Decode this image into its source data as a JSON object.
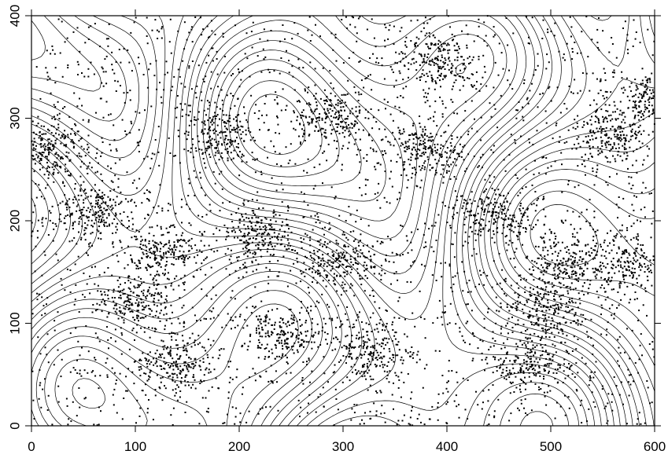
{
  "chart_data": {
    "type": "scatter",
    "title": "",
    "xlabel": "",
    "ylabel": "",
    "xlim": [
      0,
      600
    ],
    "ylim": [
      0,
      400
    ],
    "x_ticks": [
      0,
      100,
      200,
      300,
      400,
      500,
      600
    ],
    "x_tick_labels": [
      "0",
      "100",
      "200",
      "300",
      "400",
      "500",
      "600"
    ],
    "y_ticks": [
      0,
      100,
      200,
      300,
      400
    ],
    "y_tick_labels": [
      "0",
      "100",
      "200",
      "300",
      "400"
    ],
    "grid": false,
    "legend": "none",
    "background_layer": "topographic contour lines",
    "colors": {
      "points": "#000000",
      "contours": "#000000",
      "background": "#ffffff"
    },
    "series": [
      {
        "marker": "dot",
        "cluster_centers": [
          {
            "x": 125,
            "y": 170
          },
          {
            "x": 215,
            "y": 185
          },
          {
            "x": 300,
            "y": 160
          },
          {
            "x": 375,
            "y": 270
          },
          {
            "x": 495,
            "y": 110
          },
          {
            "x": 560,
            "y": 280
          },
          {
            "x": 20,
            "y": 270
          },
          {
            "x": 140,
            "y": 60
          },
          {
            "x": 240,
            "y": 90
          },
          {
            "x": 390,
            "y": 355
          },
          {
            "x": 510,
            "y": 160
          },
          {
            "x": 100,
            "y": 120
          },
          {
            "x": 330,
            "y": 75
          },
          {
            "x": 445,
            "y": 205
          },
          {
            "x": 570,
            "y": 160
          },
          {
            "x": 60,
            "y": 210
          },
          {
            "x": 180,
            "y": 285
          },
          {
            "x": 290,
            "y": 300
          },
          {
            "x": 480,
            "y": 60
          },
          {
            "x": 600,
            "y": 320
          }
        ],
        "approx_point_count": 6500
      }
    ]
  }
}
